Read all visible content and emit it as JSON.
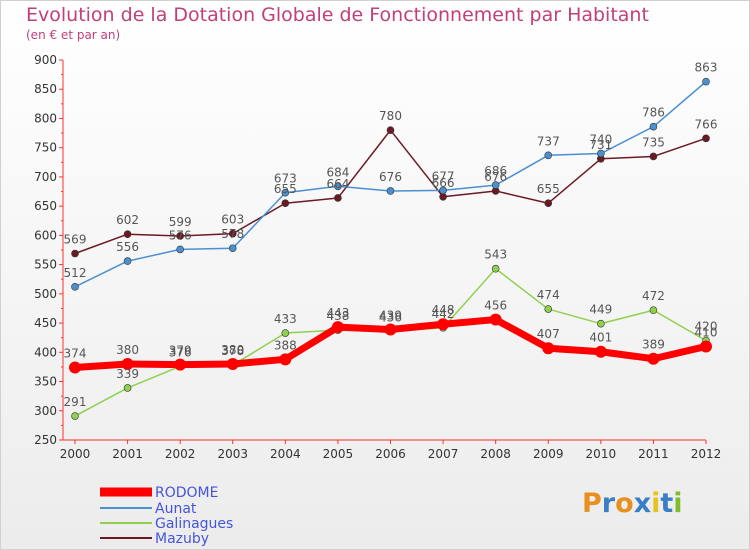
{
  "title": "Evolution de la Dotation Globale de Fonctionnement par Habitant",
  "subtitle": "(en € et par an)",
  "logo": [
    "P",
    "r",
    "o",
    "x",
    "i",
    "t",
    "i"
  ],
  "logo_colors": [
    "#e8901e",
    "#3a7fc6",
    "#e8901e",
    "#3a7fc6",
    "#e8c21e",
    "#3a7fc6",
    "#7cbf2a"
  ],
  "chart_data": {
    "type": "line",
    "x": [
      2000,
      2001,
      2002,
      2003,
      2004,
      2005,
      2006,
      2007,
      2008,
      2009,
      2010,
      2011,
      2012
    ],
    "ylim": [
      250,
      900
    ],
    "yticks": [
      250,
      300,
      350,
      400,
      450,
      500,
      550,
      600,
      650,
      700,
      750,
      800,
      850,
      900
    ],
    "grid": false,
    "legend": "bottom-left",
    "series": [
      {
        "name": "RODOME",
        "color": "#ff0000",
        "values": [
          374,
          380,
          379,
          380,
          388,
          443,
          439,
          448,
          456,
          407,
          401,
          389,
          410
        ],
        "labels": [
          "374",
          "380",
          "379",
          "380",
          "388",
          "443",
          "439",
          "448",
          "456",
          "407",
          "401",
          "389",
          "410"
        ]
      },
      {
        "name": "Aunat",
        "color": "#4a90d0",
        "values": [
          512,
          556,
          576,
          578,
          673,
          684,
          676,
          677,
          686,
          737,
          740,
          786,
          863
        ],
        "labels": [
          "512",
          "556",
          "576",
          "578",
          "673",
          "684",
          "676",
          "677",
          "686",
          "737",
          "740",
          "786",
          "863"
        ]
      },
      {
        "name": "Galinagues",
        "color": "#8fd14f",
        "values": [
          291,
          339,
          376,
          378,
          433,
          438,
          436,
          442,
          543,
          474,
          449,
          472,
          420
        ],
        "labels": [
          "291",
          "339",
          "376",
          "378",
          "433",
          "438",
          "436",
          "442",
          "543",
          "474",
          "449",
          "472",
          "420"
        ]
      },
      {
        "name": "Mazuby",
        "color": "#6b1a24",
        "values": [
          569,
          602,
          599,
          603,
          655,
          664,
          780,
          666,
          676,
          655,
          731,
          735,
          766
        ],
        "labels": [
          "569",
          "602",
          "599",
          "603",
          "655",
          "664",
          "780",
          "666",
          "676",
          "655",
          "731",
          "735",
          "766"
        ]
      }
    ]
  }
}
